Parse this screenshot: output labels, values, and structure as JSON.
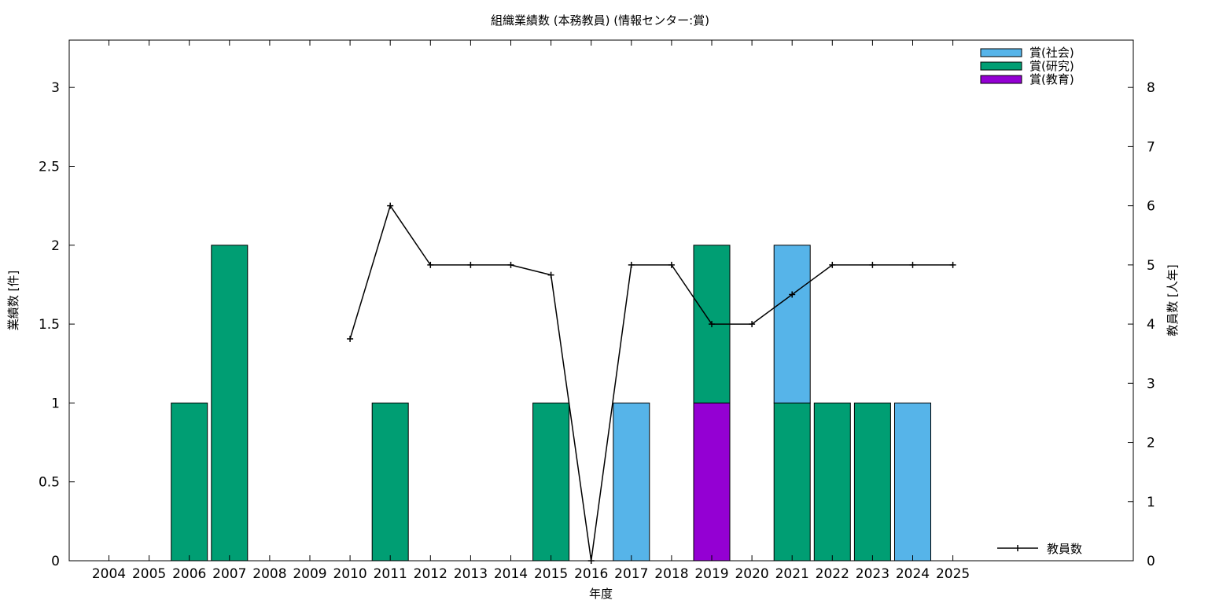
{
  "chart_data": {
    "type": "bar",
    "title": "組織業績数 (本務教員) (情報センター:賞)",
    "xlabel": "年度",
    "ylabel": "業績数 [件]",
    "y2label": "教員数 [人年]",
    "categories": [
      "2004",
      "2005",
      "2006",
      "2007",
      "2008",
      "2009",
      "2010",
      "2011",
      "2012",
      "2013",
      "2014",
      "2015",
      "2016",
      "2017",
      "2018",
      "2019",
      "2020",
      "2021",
      "2022",
      "2023",
      "2024",
      "2025"
    ],
    "ylim": [
      0,
      3.3
    ],
    "yticks": [
      "0",
      "0.5",
      "1",
      "1.5",
      "2",
      "2.5",
      "3"
    ],
    "ytick_values": [
      0,
      0.5,
      1,
      1.5,
      2,
      2.5,
      3
    ],
    "y2lim": [
      0,
      8.8
    ],
    "y2ticks": [
      "0",
      "1",
      "2",
      "3",
      "4",
      "5",
      "6",
      "7",
      "8"
    ],
    "y2tick_values": [
      0,
      1,
      2,
      3,
      4,
      5,
      6,
      7,
      8
    ],
    "stacked": true,
    "series": [
      {
        "name": "賞(教育)",
        "color": "#9400d3",
        "values": [
          0,
          0,
          0,
          0,
          0,
          0,
          0,
          0,
          0,
          0,
          0,
          0,
          0,
          0,
          0,
          1,
          0,
          0,
          0,
          0,
          0,
          0
        ]
      },
      {
        "name": "賞(研究)",
        "color": "#009e73",
        "values": [
          0,
          0,
          1,
          2,
          0,
          0,
          0,
          1,
          0,
          0,
          0,
          1,
          0,
          0,
          0,
          1,
          0,
          1,
          1,
          1,
          0,
          0
        ]
      },
      {
        "name": "賞(社会)",
        "color": "#56b4e9",
        "values": [
          0,
          0,
          0,
          0,
          0,
          0,
          0,
          0,
          0,
          0,
          0,
          0,
          0,
          1,
          0,
          0,
          0,
          1,
          0,
          0,
          1,
          0
        ]
      }
    ],
    "legend_order": [
      "賞(社会)",
      "賞(研究)",
      "賞(教育)"
    ],
    "legend_position": "top-right",
    "line_series": {
      "name": "教員数",
      "color": "#000000",
      "axis": "y2",
      "x": [
        "2010",
        "2011",
        "2012",
        "2013",
        "2014",
        "2015",
        "2016",
        "2017",
        "2018",
        "2019",
        "2020",
        "2021",
        "2022",
        "2023",
        "2024",
        "2025"
      ],
      "values": [
        3.75,
        6,
        5,
        5,
        5,
        4.83,
        0,
        5,
        5,
        4,
        4,
        4.5,
        5,
        5,
        5,
        5
      ],
      "legend_position": "bottom-right"
    },
    "grid": false
  }
}
